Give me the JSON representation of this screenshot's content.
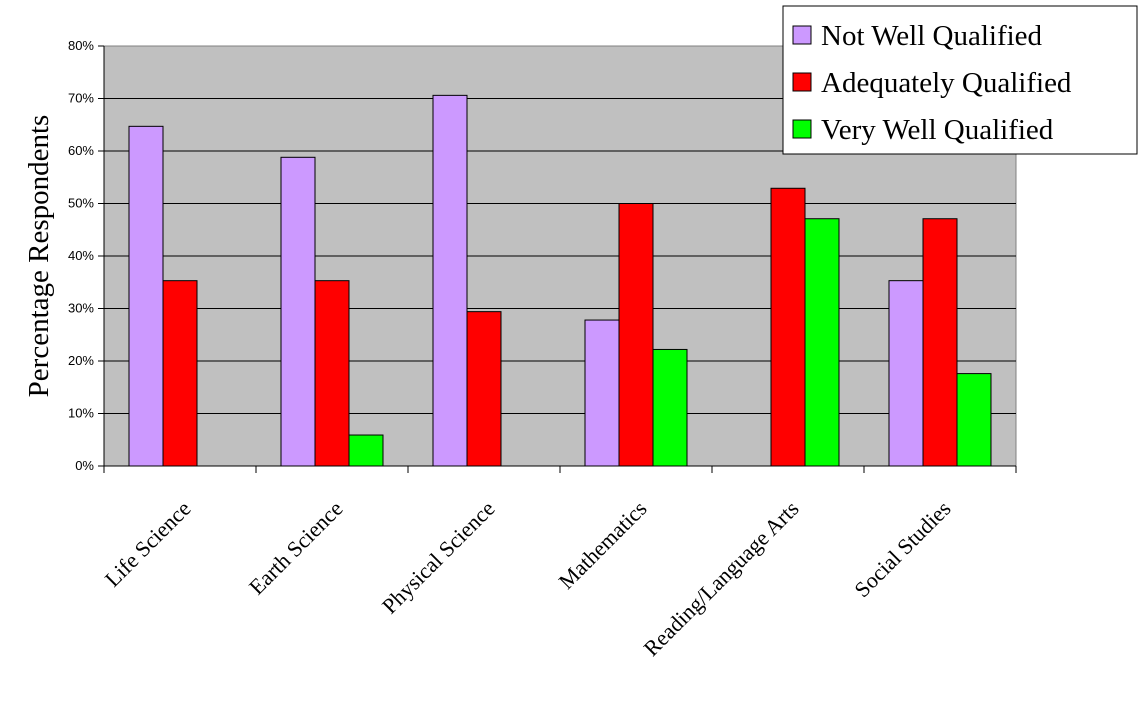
{
  "chart_data": {
    "type": "bar",
    "categories": [
      "Life Science",
      "Earth Science",
      "Physical Science",
      "Mathematics",
      "Reading/Language Arts",
      "Social Studies"
    ],
    "series": [
      {
        "name": "Not Well Qualified",
        "color": "#cc99ff",
        "values": [
          64.7,
          58.8,
          70.6,
          27.8,
          0,
          35.3
        ]
      },
      {
        "name": "Adequately Qualified",
        "color": "#ff0000",
        "values": [
          35.3,
          35.3,
          29.4,
          50.0,
          52.9,
          47.1
        ]
      },
      {
        "name": "Very Well Qualified",
        "color": "#00ff00",
        "values": [
          0,
          5.9,
          0,
          22.2,
          47.1,
          17.6
        ]
      }
    ],
    "xlabel": "",
    "ylabel": "Percentage Respondents",
    "ylim": [
      0,
      80
    ],
    "yticks": [
      "0%",
      "10%",
      "20%",
      "30%",
      "40%",
      "50%",
      "60%",
      "70%",
      "80%"
    ],
    "grid": true,
    "plot_background": "#c0c0c0",
    "legend_position": "top-right"
  }
}
